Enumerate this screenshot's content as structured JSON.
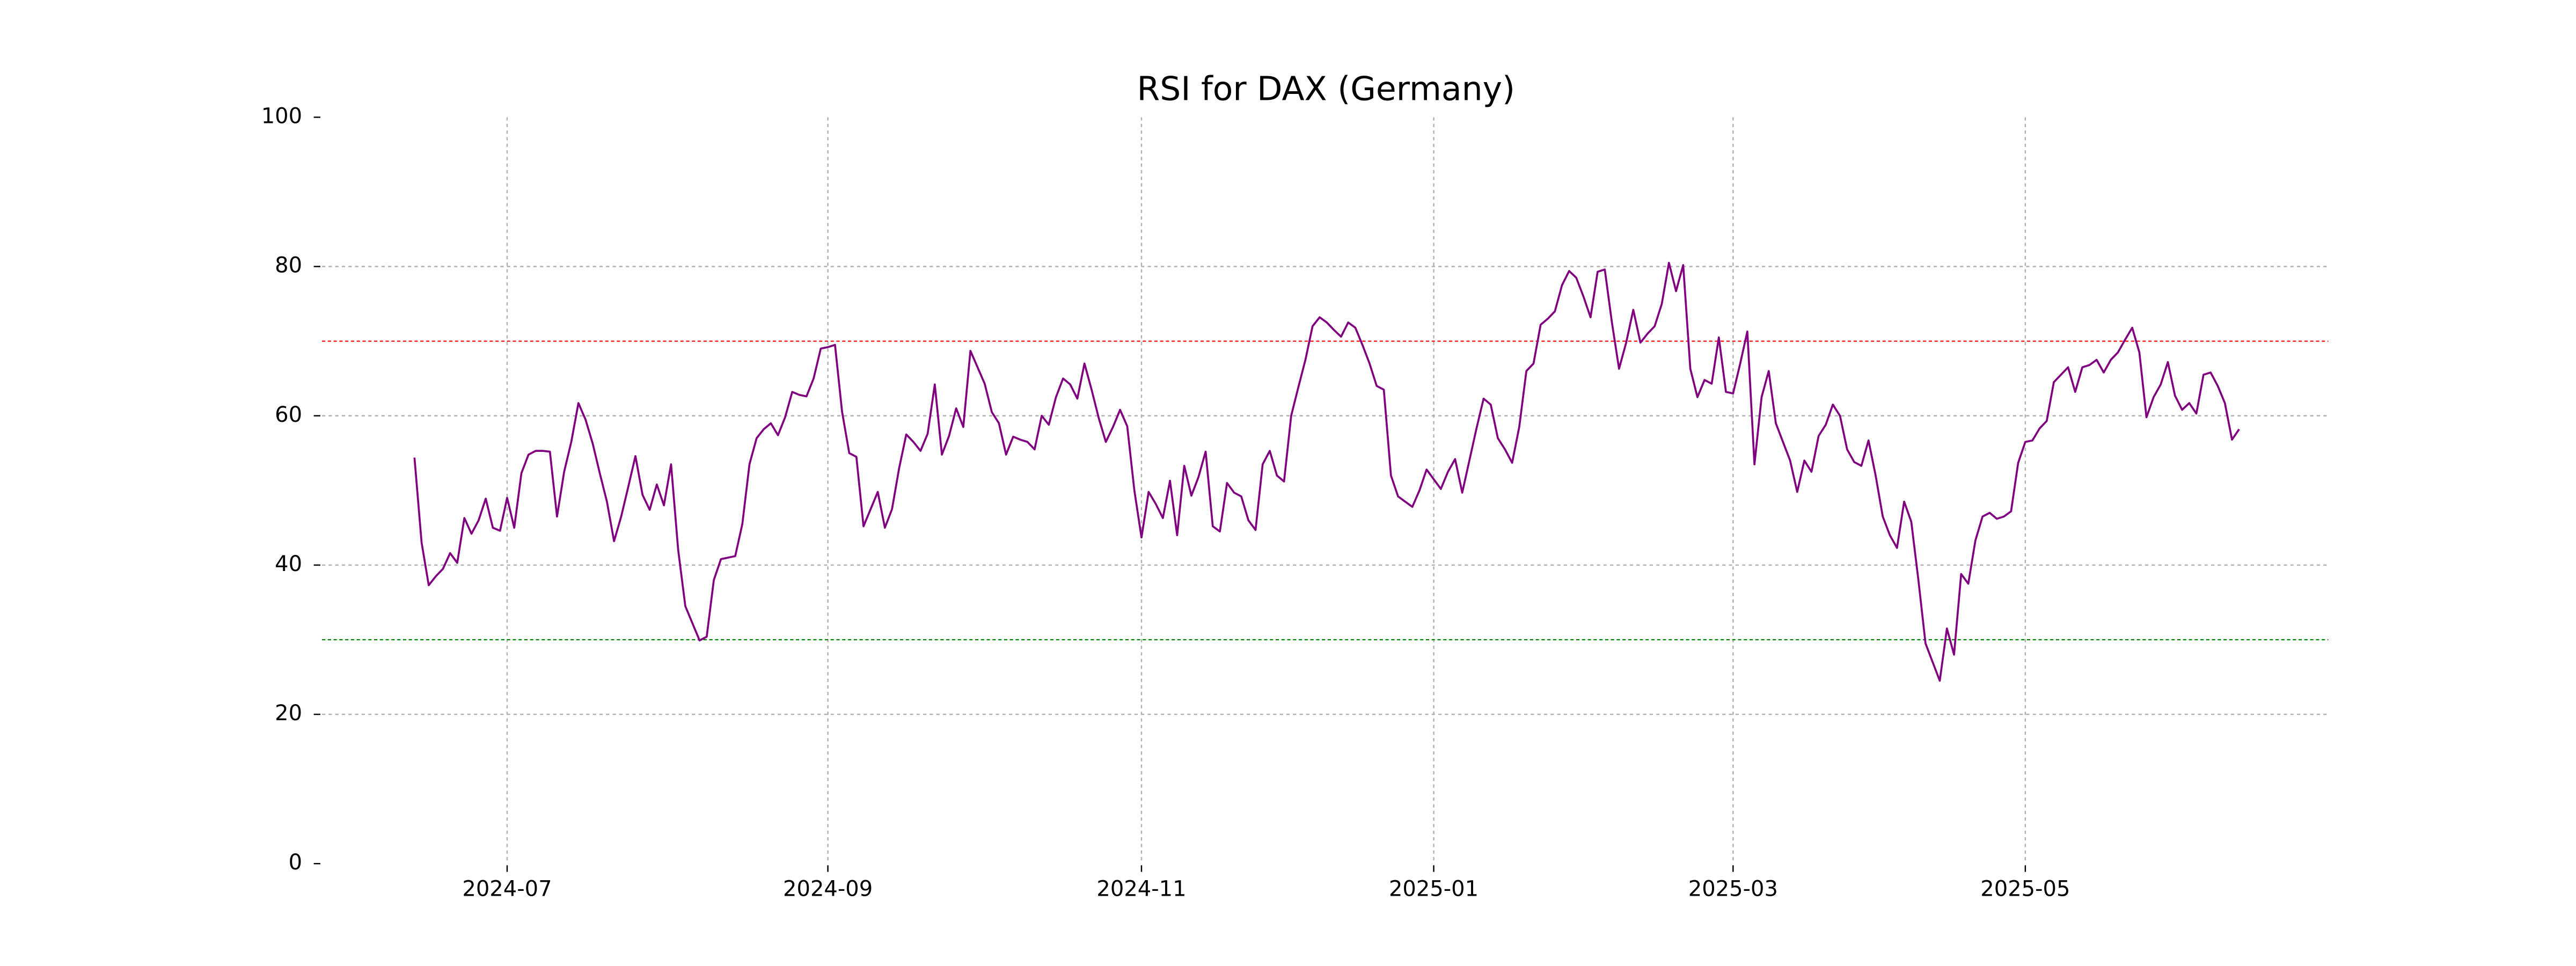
{
  "chart_data": {
    "type": "line",
    "title": "RSI for DAX (Germany)",
    "color": "#800080",
    "grid": true,
    "ylim": [
      0,
      100
    ],
    "yticks": [
      0,
      20,
      40,
      60,
      80,
      100
    ],
    "xticks": [
      "2024-07",
      "2024-09",
      "2024-11",
      "2025-01",
      "2025-03",
      "2025-05"
    ],
    "hlines": [
      {
        "value": 70,
        "color": "#ff0000"
      },
      {
        "value": 30,
        "color": "#008000"
      }
    ],
    "x": [
      "2024-06",
      "2024-06",
      "2024-06",
      "2024-06",
      "2024-06",
      "2024-06",
      "2024-06",
      "2024-06",
      "2024-06",
      "2024-06",
      "2024-06",
      "2024-06",
      "2024-06",
      "2024-07",
      "2024-07",
      "2024-07",
      "2024-07",
      "2024-07",
      "2024-07",
      "2024-07",
      "2024-07",
      "2024-07",
      "2024-07",
      "2024-07",
      "2024-07",
      "2024-07",
      "2024-07",
      "2024-07",
      "2024-07",
      "2024-07",
      "2024-07",
      "2024-07",
      "2024-07",
      "2024-07",
      "2024-07",
      "2024-07",
      "2024-08",
      "2024-08",
      "2024-08",
      "2024-08",
      "2024-08",
      "2024-08",
      "2024-08",
      "2024-08",
      "2024-08",
      "2024-08",
      "2024-08",
      "2024-08",
      "2024-08",
      "2024-08",
      "2024-08",
      "2024-08",
      "2024-08",
      "2024-08",
      "2024-08",
      "2024-08",
      "2024-08",
      "2024-08",
      "2024-09",
      "2024-09",
      "2024-09",
      "2024-09",
      "2024-09",
      "2024-09",
      "2024-09",
      "2024-09",
      "2024-09",
      "2024-09",
      "2024-09",
      "2024-09",
      "2024-09",
      "2024-09",
      "2024-09",
      "2024-09",
      "2024-09",
      "2024-09",
      "2024-09",
      "2024-09",
      "2024-09",
      "2024-10",
      "2024-10",
      "2024-10",
      "2024-10",
      "2024-10",
      "2024-10",
      "2024-10",
      "2024-10",
      "2024-10",
      "2024-10",
      "2024-10",
      "2024-10",
      "2024-10",
      "2024-10",
      "2024-10",
      "2024-10",
      "2024-10",
      "2024-10",
      "2024-10",
      "2024-10",
      "2024-10",
      "2024-10",
      "2024-10",
      "2024-11",
      "2024-11",
      "2024-11",
      "2024-11",
      "2024-11",
      "2024-11",
      "2024-11",
      "2024-11",
      "2024-11",
      "2024-11",
      "2024-11",
      "2024-11",
      "2024-11",
      "2024-11",
      "2024-11",
      "2024-11",
      "2024-11",
      "2024-11",
      "2024-11",
      "2024-11",
      "2024-11",
      "2024-12",
      "2024-12",
      "2024-12",
      "2024-12",
      "2024-12",
      "2024-12",
      "2024-12",
      "2024-12",
      "2024-12",
      "2024-12",
      "2024-12",
      "2024-12",
      "2024-12",
      "2024-12",
      "2024-12",
      "2024-12",
      "2024-12",
      "2024-12",
      "2024-12",
      "2024-12",
      "2025-01",
      "2025-01",
      "2025-01",
      "2025-01",
      "2025-01",
      "2025-01",
      "2025-01",
      "2025-01",
      "2025-01",
      "2025-01",
      "2025-01",
      "2025-01",
      "2025-01",
      "2025-01",
      "2025-01",
      "2025-01",
      "2025-01",
      "2025-01",
      "2025-01",
      "2025-01",
      "2025-01",
      "2025-01",
      "2025-02",
      "2025-02",
      "2025-02",
      "2025-02",
      "2025-02",
      "2025-02",
      "2025-02",
      "2025-02",
      "2025-02",
      "2025-02",
      "2025-02",
      "2025-02",
      "2025-02",
      "2025-02",
      "2025-02",
      "2025-02",
      "2025-02",
      "2025-02",
      "2025-02",
      "2025-02",
      "2025-03",
      "2025-03",
      "2025-03",
      "2025-03",
      "2025-03",
      "2025-03",
      "2025-03",
      "2025-03",
      "2025-03",
      "2025-03",
      "2025-03",
      "2025-03",
      "2025-03",
      "2025-03",
      "2025-03",
      "2025-03",
      "2025-03",
      "2025-03",
      "2025-03",
      "2025-03",
      "2025-03",
      "2025-04",
      "2025-04",
      "2025-04",
      "2025-04",
      "2025-04",
      "2025-04",
      "2025-04",
      "2025-04",
      "2025-04",
      "2025-04",
      "2025-04",
      "2025-04",
      "2025-04",
      "2025-04",
      "2025-04",
      "2025-04",
      "2025-04",
      "2025-04",
      "2025-04",
      "2025-04",
      "2025-05",
      "2025-05",
      "2025-05",
      "2025-05",
      "2025-05",
      "2025-05",
      "2025-05",
      "2025-05",
      "2025-05",
      "2025-05",
      "2025-05",
      "2025-05",
      "2025-05",
      "2025-05",
      "2025-05",
      "2025-05",
      "2025-05",
      "2025-05",
      "2025-05",
      "2025-05",
      "2025-05",
      "2025-06",
      "2025-06",
      "2025-06",
      "2025-06",
      "2025-06",
      "2025-06",
      "2025-06",
      "2025-06",
      "2025-06",
      "2025-06"
    ],
    "values": [
      54.4,
      43,
      37.3,
      38.5,
      39.5,
      41.6,
      40.3,
      46.3,
      44.2,
      46,
      48.9,
      45,
      44.6,
      49,
      45,
      52.3,
      54.8,
      55.3,
      55.3,
      55.2,
      46.5,
      52.5,
      56.5,
      61.7,
      59.5,
      56.3,
      52.3,
      48.5,
      43.2,
      46.5,
      50.5,
      54.6,
      49.4,
      47.4,
      50.8,
      48,
      53.5,
      42,
      34.5,
      32.2,
      29.9,
      30.4,
      38,
      40.8,
      41,
      41.2,
      45.5,
      53.5,
      57,
      58.2,
      59,
      57.4,
      59.8,
      63.2,
      62.8,
      62.6,
      65,
      69,
      69.2,
      69.5,
      60.5,
      55,
      54.5,
      45.2,
      47.5,
      49.8,
      45,
      47.5,
      53,
      57.5,
      56.5,
      55.3,
      57.6,
      64.2,
      54.8,
      57.3,
      61,
      58.5,
      68.7,
      66.5,
      64.3,
      60.5,
      59,
      54.8,
      57.2,
      56.8,
      56.5,
      55.5,
      60,
      58.8,
      62.5,
      65,
      64.2,
      62.3,
      67,
      63.5,
      59.7,
      56.5,
      58.5,
      60.8,
      58.6,
      50,
      43.7,
      49.8,
      48.2,
      46.3,
      51.3,
      44,
      53.3,
      49.3,
      51.8,
      55.2,
      45.2,
      44.5,
      51,
      49.7,
      49.2,
      46,
      44.7,
      53.5,
      55.3,
      52,
      51.2,
      60,
      63.8,
      67.5,
      72,
      73.2,
      72.5,
      71.5,
      70.6,
      72.5,
      71.8,
      69.5,
      67,
      64,
      63.5,
      52,
      49.2,
      48.5,
      47.8,
      50,
      52.8,
      51.5,
      50.2,
      52.5,
      54.2,
      49.7,
      54,
      58.3,
      62.3,
      61.5,
      57,
      55.5,
      53.7,
      58.5,
      66,
      67,
      72.2,
      73,
      74,
      77.5,
      79.4,
      78.5,
      76,
      73.2,
      79.3,
      79.6,
      72.5,
      66.3,
      69.8,
      74.2,
      69.8,
      71,
      72,
      75,
      80.5,
      76.7,
      80.2,
      66.3,
      62.5,
      64.8,
      64.3,
      70.5,
      63.2,
      63,
      67,
      71.3,
      53.5,
      62.5,
      66,
      59,
      56.5,
      54,
      49.8,
      54,
      52.5,
      57.3,
      58.8,
      61.5,
      60,
      55.5,
      53.8,
      53.3,
      56.7,
      52,
      46.5,
      44,
      42.3,
      48.5,
      45.8,
      38,
      29.5,
      27,
      24.5,
      31.5,
      28,
      38.8,
      37.5,
      43.3,
      46.5,
      47,
      46.2,
      46.5,
      47.2,
      53.7,
      56.5,
      56.7,
      58.3,
      59.3,
      64.5,
      65.5,
      66.5,
      63.2,
      66.5,
      66.8,
      67.5,
      65.8,
      67.5,
      68.5,
      70.2,
      71.8,
      68.5,
      59.8,
      62.5,
      64.2,
      67.2,
      62.7,
      60.8,
      61.7,
      60.3,
      65.5,
      65.8,
      64,
      61.7,
      56.8,
      58.2
    ]
  }
}
